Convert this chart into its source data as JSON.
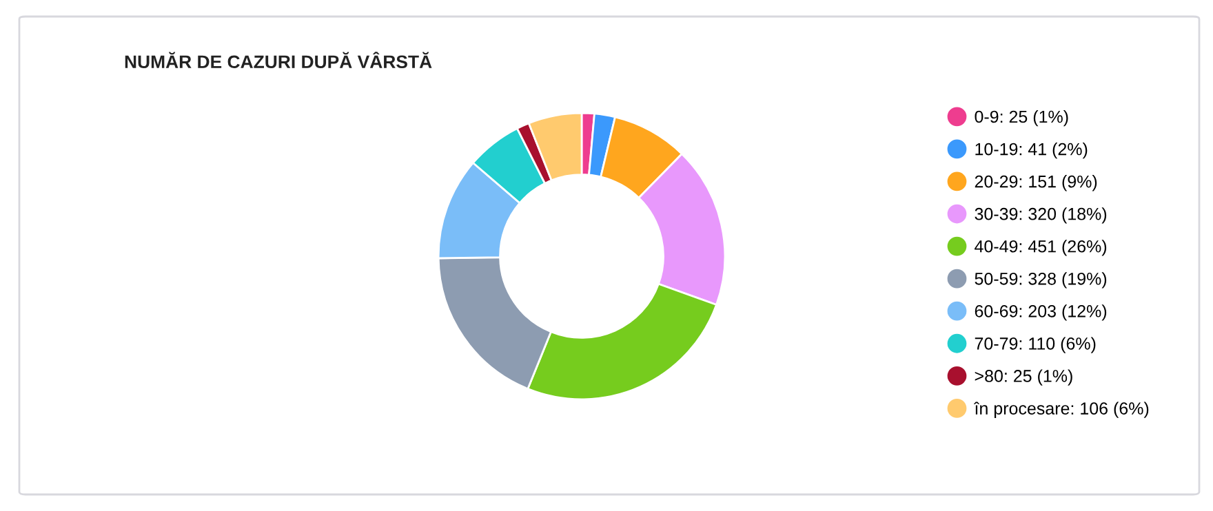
{
  "chart_data": {
    "type": "donut",
    "title": "NUMĂR DE CAZURI DUPĂ VÂRSTĂ",
    "categories": [
      "0-9: 25 (1%)",
      "10-19: 41 (2%)",
      "20-29: 151 (9%)",
      "30-39: 320 (18%)",
      "40-49: 451 (26%)",
      "50-59: 328 (19%)",
      "60-69: 203 (12%)",
      "70-79: 110 (6%)",
      ">80: 25 (1%)",
      "în procesare: 106 (6%)"
    ],
    "values": [
      25,
      41,
      151,
      320,
      451,
      328,
      203,
      110,
      25,
      106
    ],
    "colors": [
      "#ee3d8f",
      "#3b99fc",
      "#ffa61e",
      "#e898fc",
      "#76cc1e",
      "#8d9cb1",
      "#7abdf8",
      "#22cfcf",
      "#a8102e",
      "#ffca6e"
    ],
    "legend": "right"
  }
}
